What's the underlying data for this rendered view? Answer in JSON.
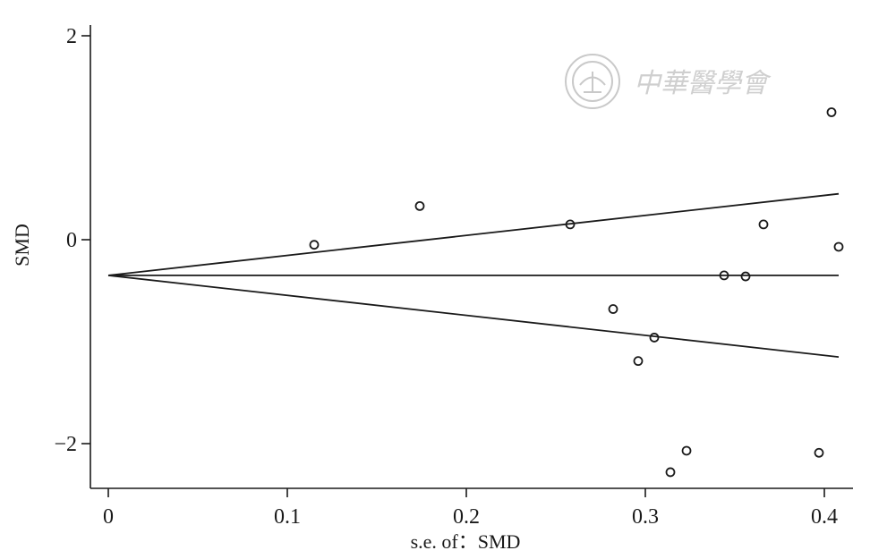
{
  "watermark": {
    "text": "中華醫學會"
  },
  "chart_data": {
    "type": "scatter",
    "xlabel": "s.e. of：SMD",
    "ylabel": "SMD",
    "xlim": [
      0,
      0.41
    ],
    "ylim": [
      -2.45,
      2.1
    ],
    "x_ticks": [
      "0",
      "0.1",
      "0.2",
      "0.3",
      "0.4"
    ],
    "x_tick_values": [
      0,
      0.1,
      0.2,
      0.3,
      0.4
    ],
    "y_ticks": [
      "2",
      "0",
      "−2"
    ],
    "y_tick_values": [
      2,
      0,
      -2
    ],
    "grid": false,
    "pooled_estimate": -0.35,
    "funnel": {
      "apex": [
        0,
        -0.35
      ],
      "upper_end": [
        0.408,
        0.45
      ],
      "lower_end": [
        0.408,
        -1.15
      ],
      "center_end": [
        0.408,
        -0.35
      ]
    },
    "points": [
      {
        "x": 0.115,
        "y": -0.05
      },
      {
        "x": 0.174,
        "y": 0.33
      },
      {
        "x": 0.258,
        "y": 0.15
      },
      {
        "x": 0.282,
        "y": -0.68
      },
      {
        "x": 0.296,
        "y": -1.19
      },
      {
        "x": 0.305,
        "y": -0.96
      },
      {
        "x": 0.314,
        "y": -2.28
      },
      {
        "x": 0.323,
        "y": -2.07
      },
      {
        "x": 0.344,
        "y": -0.35
      },
      {
        "x": 0.356,
        "y": -0.36
      },
      {
        "x": 0.366,
        "y": 0.15
      },
      {
        "x": 0.397,
        "y": -2.09
      },
      {
        "x": 0.404,
        "y": 1.25
      },
      {
        "x": 0.408,
        "y": -0.07
      }
    ]
  }
}
